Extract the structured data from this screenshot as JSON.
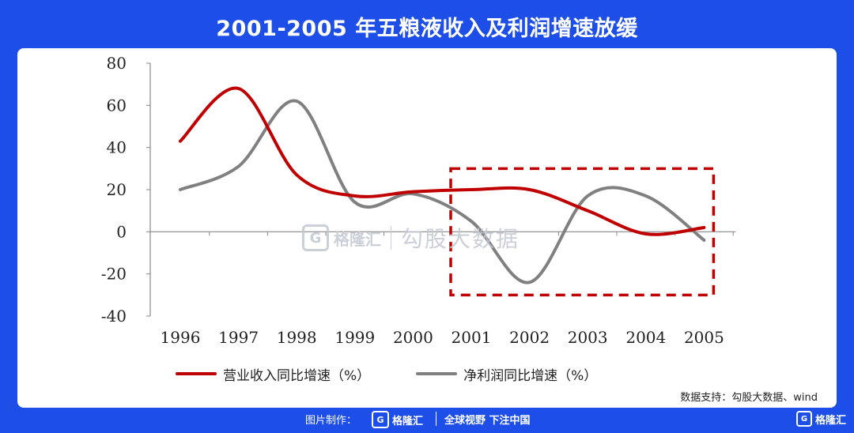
{
  "title": "2001-2005 年五粮液收入及利润增速放缓",
  "chart_data": {
    "type": "line",
    "x": [
      "1996",
      "1997",
      "1998",
      "1999",
      "2000",
      "2001",
      "2002",
      "2003",
      "2004",
      "2005"
    ],
    "ylim": [
      -40,
      80
    ],
    "yticks": [
      "80",
      "60",
      "40",
      "20",
      "0",
      "-20",
      "-40"
    ],
    "series": [
      {
        "name": "营业收入同比增速（%）",
        "color": "#c00000",
        "values": [
          43,
          68,
          27,
          17,
          19,
          20,
          20,
          10,
          -1,
          2
        ]
      },
      {
        "name": "净利润同比增速（%）",
        "color": "#808080",
        "values": [
          20,
          31,
          62,
          14,
          18,
          5,
          -24,
          17,
          17,
          -4
        ]
      }
    ],
    "highlight_box": {
      "x_from": "2001",
      "x_to": "2005",
      "y_from": -30,
      "y_to": 30,
      "color": "#c00000"
    }
  },
  "source": "数据支持：勾股大数据、wind",
  "watermark": {
    "brand": "格隆汇",
    "text": "勾股大数据",
    "logo_letter": "G"
  },
  "footer": {
    "credit_label": "图片制作：",
    "logo_text": "格隆汇",
    "slogan": "全球视野 下注中国",
    "corner_logo_text": "格隆汇",
    "logo_letter": "G"
  }
}
